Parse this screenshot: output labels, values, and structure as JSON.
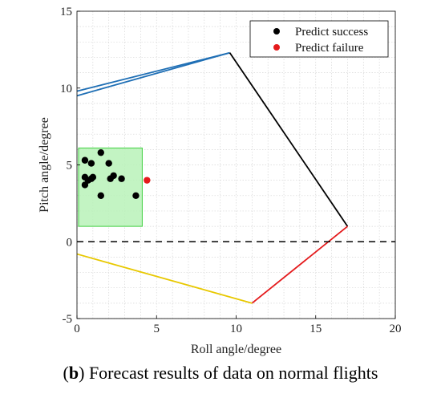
{
  "caption": {
    "letter": "b",
    "text": ") Forecast results of data on normal flights"
  },
  "chart_data": {
    "type": "scatter",
    "xlabel": "Roll angle/degree",
    "ylabel": "Pitch angle/degree",
    "xlim": [
      0,
      20
    ],
    "ylim": [
      -5,
      15
    ],
    "xticks": [
      0,
      5,
      10,
      15,
      20
    ],
    "yticks": [
      -5,
      0,
      5,
      10,
      15
    ],
    "grid": true,
    "legend_position": "top-right",
    "colors": {
      "success": "#000000",
      "failure": "#e41a1c",
      "blue": "#1f6fb5",
      "black": "#000000",
      "red": "#e41a1c",
      "yellow": "#e8c800",
      "safe_region_fill": "#b9f2b9",
      "safe_region_edge": "#3fcf3f"
    },
    "series": [
      {
        "name": "Predict success",
        "marker": "circle",
        "color": "#000000",
        "points": [
          [
            0.5,
            5.3
          ],
          [
            1.5,
            5.8
          ],
          [
            0.9,
            5.1
          ],
          [
            2.0,
            5.1
          ],
          [
            0.5,
            4.2
          ],
          [
            0.7,
            4.0
          ],
          [
            1.0,
            4.2
          ],
          [
            0.9,
            4.1
          ],
          [
            0.5,
            3.7
          ],
          [
            1.5,
            3.0
          ],
          [
            2.1,
            4.1
          ],
          [
            2.3,
            4.3
          ],
          [
            2.8,
            4.1
          ],
          [
            3.7,
            3.0
          ]
        ]
      },
      {
        "name": "Predict failure",
        "marker": "circle",
        "color": "#e41a1c",
        "points": [
          [
            4.4,
            4.0
          ]
        ]
      }
    ],
    "boundary_lines": [
      {
        "color": "#1f6fb5",
        "points": [
          [
            0,
            9.8
          ],
          [
            9.6,
            12.3
          ]
        ]
      },
      {
        "color": "#1f6fb5",
        "points": [
          [
            0,
            9.5
          ],
          [
            9.6,
            12.3
          ]
        ]
      },
      {
        "color": "#000000",
        "points": [
          [
            9.6,
            12.3
          ],
          [
            17.0,
            1.0
          ]
        ]
      },
      {
        "color": "#e41a1c",
        "points": [
          [
            11.0,
            -4.0
          ],
          [
            17.0,
            1.0
          ]
        ]
      },
      {
        "color": "#e8c800",
        "points": [
          [
            0,
            -0.8
          ],
          [
            11.0,
            -4.0
          ]
        ]
      }
    ],
    "reference_line": {
      "y": 0,
      "style": "dashed",
      "color": "#000000"
    },
    "region": {
      "x": [
        0.1,
        4.1
      ],
      "y": [
        1.0,
        6.1
      ]
    }
  }
}
